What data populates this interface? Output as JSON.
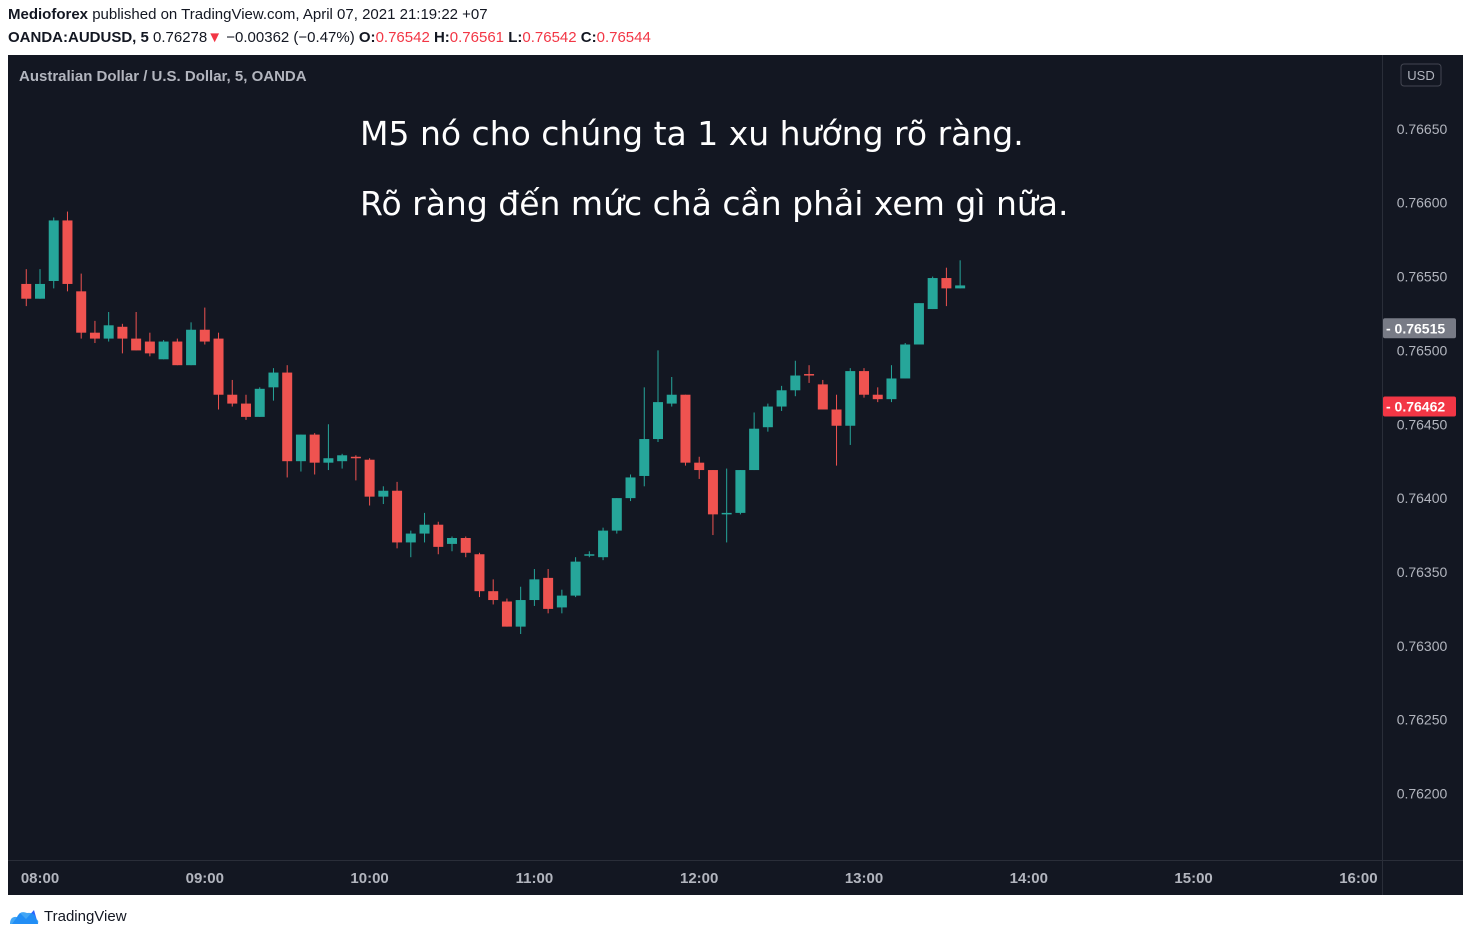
{
  "header": {
    "author": "Medioforex",
    "published": "published on TradingView.com, April 07, 2021 21:19:22 +07",
    "symbol": "OANDA:AUDUSD, 5",
    "last": "0.76278",
    "change_arrow": "▼",
    "change": "−0.00362 (−0.47%)",
    "o_label": "O:",
    "o_value": "0.76542",
    "h_label": "H:",
    "h_value": "0.76561",
    "l_label": "L:",
    "l_value": "0.76542",
    "c_label": "C:",
    "c_value": "0.76544"
  },
  "footer": {
    "brand": "TradingView"
  },
  "colors": {
    "up": "#26a69a",
    "down": "#ef5350",
    "background": "#131722",
    "text": "#b2b5be"
  },
  "chart_data": {
    "type": "candlestick",
    "title": "Australian Dollar / U.S. Dollar, 5, OANDA",
    "annotations": [
      "M5 nó cho chúng ta 1 xu hướng rõ ràng.",
      "Rõ ràng đến mức chả cần phải xem gì nữa."
    ],
    "currency_label": "USD",
    "y_ticks": [
      "0.76650",
      "0.76600",
      "0.76550",
      "0.76500",
      "0.76450",
      "0.76400",
      "0.76350",
      "0.76300",
      "0.76250",
      "0.76200"
    ],
    "y_range": [
      0.76155,
      0.767
    ],
    "x_ticks": [
      "08:00",
      "09:00",
      "10:00",
      "11:00",
      "12:00",
      "13:00",
      "14:00",
      "15:00",
      "16:00"
    ],
    "price_labels": [
      {
        "value": 0.76515,
        "text": "0.76515",
        "color": "#787b86"
      },
      {
        "value": 0.76462,
        "text": "0.76462",
        "color": "#f23645"
      }
    ],
    "candles": [
      {
        "t": "07:55",
        "o": 0.76545,
        "h": 0.76555,
        "l": 0.7653,
        "c": 0.76535
      },
      {
        "t": "08:00",
        "o": 0.76535,
        "h": 0.76555,
        "l": 0.76535,
        "c": 0.76545
      },
      {
        "t": "08:05",
        "o": 0.76547,
        "h": 0.7659,
        "l": 0.76542,
        "c": 0.76588
      },
      {
        "t": "08:10",
        "o": 0.76588,
        "h": 0.76594,
        "l": 0.7654,
        "c": 0.76545
      },
      {
        "t": "08:15",
        "o": 0.7654,
        "h": 0.76552,
        "l": 0.76508,
        "c": 0.76512
      },
      {
        "t": "08:20",
        "o": 0.76512,
        "h": 0.7652,
        "l": 0.76505,
        "c": 0.76508
      },
      {
        "t": "08:25",
        "o": 0.76508,
        "h": 0.76526,
        "l": 0.76506,
        "c": 0.76517
      },
      {
        "t": "08:30",
        "o": 0.76516,
        "h": 0.76518,
        "l": 0.76498,
        "c": 0.76508
      },
      {
        "t": "08:35",
        "o": 0.76508,
        "h": 0.76526,
        "l": 0.765,
        "c": 0.765
      },
      {
        "t": "08:40",
        "o": 0.76506,
        "h": 0.76512,
        "l": 0.76496,
        "c": 0.76498
      },
      {
        "t": "08:45",
        "o": 0.76494,
        "h": 0.76507,
        "l": 0.76494,
        "c": 0.76506
      },
      {
        "t": "08:50",
        "o": 0.76506,
        "h": 0.76508,
        "l": 0.7649,
        "c": 0.7649
      },
      {
        "t": "08:55",
        "o": 0.7649,
        "h": 0.76519,
        "l": 0.7649,
        "c": 0.76514
      },
      {
        "t": "09:00",
        "o": 0.76514,
        "h": 0.76529,
        "l": 0.76504,
        "c": 0.76506
      },
      {
        "t": "09:05",
        "o": 0.76508,
        "h": 0.76512,
        "l": 0.7646,
        "c": 0.7647
      },
      {
        "t": "09:10",
        "o": 0.7647,
        "h": 0.7648,
        "l": 0.76462,
        "c": 0.76464
      },
      {
        "t": "09:15",
        "o": 0.76464,
        "h": 0.7647,
        "l": 0.76453,
        "c": 0.76455
      },
      {
        "t": "09:20",
        "o": 0.76455,
        "h": 0.76475,
        "l": 0.76455,
        "c": 0.76474
      },
      {
        "t": "09:25",
        "o": 0.76475,
        "h": 0.76488,
        "l": 0.76466,
        "c": 0.76485
      },
      {
        "t": "09:30",
        "o": 0.76485,
        "h": 0.7649,
        "l": 0.76414,
        "c": 0.76425
      },
      {
        "t": "09:35",
        "o": 0.76425,
        "h": 0.76443,
        "l": 0.76418,
        "c": 0.76443
      },
      {
        "t": "09:40",
        "o": 0.76443,
        "h": 0.76444,
        "l": 0.76416,
        "c": 0.76424
      },
      {
        "t": "09:45",
        "o": 0.76424,
        "h": 0.7645,
        "l": 0.76419,
        "c": 0.76427
      },
      {
        "t": "09:50",
        "o": 0.76425,
        "h": 0.7643,
        "l": 0.7642,
        "c": 0.76429
      },
      {
        "t": "09:55",
        "o": 0.76428,
        "h": 0.76429,
        "l": 0.76412,
        "c": 0.76427
      },
      {
        "t": "10:00",
        "o": 0.76426,
        "h": 0.76427,
        "l": 0.76395,
        "c": 0.76401
      },
      {
        "t": "10:05",
        "o": 0.76401,
        "h": 0.76408,
        "l": 0.76396,
        "c": 0.76405
      },
      {
        "t": "10:10",
        "o": 0.76405,
        "h": 0.76411,
        "l": 0.76366,
        "c": 0.7637
      },
      {
        "t": "10:15",
        "o": 0.7637,
        "h": 0.76378,
        "l": 0.7636,
        "c": 0.76376
      },
      {
        "t": "10:20",
        "o": 0.76376,
        "h": 0.7639,
        "l": 0.7637,
        "c": 0.76382
      },
      {
        "t": "10:25",
        "o": 0.76382,
        "h": 0.76384,
        "l": 0.76362,
        "c": 0.76367
      },
      {
        "t": "10:30",
        "o": 0.76369,
        "h": 0.76374,
        "l": 0.76364,
        "c": 0.76373
      },
      {
        "t": "10:35",
        "o": 0.76373,
        "h": 0.76374,
        "l": 0.7636,
        "c": 0.76363
      },
      {
        "t": "10:40",
        "o": 0.76362,
        "h": 0.76363,
        "l": 0.76333,
        "c": 0.76337
      },
      {
        "t": "10:45",
        "o": 0.76337,
        "h": 0.76345,
        "l": 0.76328,
        "c": 0.76331
      },
      {
        "t": "10:50",
        "o": 0.7633,
        "h": 0.76332,
        "l": 0.76313,
        "c": 0.76313
      },
      {
        "t": "10:55",
        "o": 0.76313,
        "h": 0.7634,
        "l": 0.76308,
        "c": 0.76331
      },
      {
        "t": "11:00",
        "o": 0.76331,
        "h": 0.76352,
        "l": 0.76327,
        "c": 0.76345
      },
      {
        "t": "11:05",
        "o": 0.76346,
        "h": 0.76352,
        "l": 0.76322,
        "c": 0.76325
      },
      {
        "t": "11:10",
        "o": 0.76326,
        "h": 0.76338,
        "l": 0.76322,
        "c": 0.76334
      },
      {
        "t": "11:15",
        "o": 0.76334,
        "h": 0.7636,
        "l": 0.76333,
        "c": 0.76357
      },
      {
        "t": "11:20",
        "o": 0.76362,
        "h": 0.76364,
        "l": 0.7636,
        "c": 0.76362
      },
      {
        "t": "11:25",
        "o": 0.7636,
        "h": 0.7638,
        "l": 0.76358,
        "c": 0.76378
      },
      {
        "t": "11:30",
        "o": 0.76378,
        "h": 0.764,
        "l": 0.76376,
        "c": 0.764
      },
      {
        "t": "11:35",
        "o": 0.764,
        "h": 0.76416,
        "l": 0.76398,
        "c": 0.76414
      },
      {
        "t": "11:40",
        "o": 0.76415,
        "h": 0.76475,
        "l": 0.76408,
        "c": 0.7644
      },
      {
        "t": "11:45",
        "o": 0.7644,
        "h": 0.765,
        "l": 0.76438,
        "c": 0.76465
      },
      {
        "t": "11:50",
        "o": 0.76464,
        "h": 0.76482,
        "l": 0.76462,
        "c": 0.7647
      },
      {
        "t": "11:55",
        "o": 0.7647,
        "h": 0.7647,
        "l": 0.76422,
        "c": 0.76424
      },
      {
        "t": "12:00",
        "o": 0.76424,
        "h": 0.76428,
        "l": 0.76413,
        "c": 0.76419
      },
      {
        "t": "12:05",
        "o": 0.76419,
        "h": 0.76419,
        "l": 0.76375,
        "c": 0.76389
      },
      {
        "t": "12:10",
        "o": 0.76389,
        "h": 0.7642,
        "l": 0.7637,
        "c": 0.7639
      },
      {
        "t": "12:15",
        "o": 0.7639,
        "h": 0.76419,
        "l": 0.76389,
        "c": 0.76419
      },
      {
        "t": "12:20",
        "o": 0.76419,
        "h": 0.76458,
        "l": 0.76419,
        "c": 0.76447
      },
      {
        "t": "12:25",
        "o": 0.76448,
        "h": 0.76464,
        "l": 0.76445,
        "c": 0.76462
      },
      {
        "t": "12:30",
        "o": 0.76462,
        "h": 0.76476,
        "l": 0.76459,
        "c": 0.76473
      },
      {
        "t": "12:35",
        "o": 0.76473,
        "h": 0.76493,
        "l": 0.76469,
        "c": 0.76483
      },
      {
        "t": "12:40",
        "o": 0.76484,
        "h": 0.7649,
        "l": 0.76478,
        "c": 0.76483
      },
      {
        "t": "12:45",
        "o": 0.76477,
        "h": 0.7648,
        "l": 0.7646,
        "c": 0.7646
      },
      {
        "t": "12:50",
        "o": 0.7646,
        "h": 0.7647,
        "l": 0.76422,
        "c": 0.76449
      },
      {
        "t": "12:55",
        "o": 0.76449,
        "h": 0.76488,
        "l": 0.76436,
        "c": 0.76486
      },
      {
        "t": "13:00",
        "o": 0.76486,
        "h": 0.76488,
        "l": 0.76468,
        "c": 0.7647
      },
      {
        "t": "13:05",
        "o": 0.7647,
        "h": 0.76475,
        "l": 0.76465,
        "c": 0.76467
      },
      {
        "t": "13:10",
        "o": 0.76467,
        "h": 0.7649,
        "l": 0.76465,
        "c": 0.76481
      },
      {
        "t": "13:15",
        "o": 0.76481,
        "h": 0.76505,
        "l": 0.76481,
        "c": 0.76504
      },
      {
        "t": "13:20",
        "o": 0.76504,
        "h": 0.76532,
        "l": 0.76504,
        "c": 0.76532
      },
      {
        "t": "13:25",
        "o": 0.76528,
        "h": 0.7655,
        "l": 0.76528,
        "c": 0.76549
      },
      {
        "t": "13:30",
        "o": 0.76549,
        "h": 0.76556,
        "l": 0.7653,
        "c": 0.76542
      },
      {
        "t": "13:35",
        "o": 0.76542,
        "h": 0.76561,
        "l": 0.76542,
        "c": 0.76544
      }
    ]
  }
}
